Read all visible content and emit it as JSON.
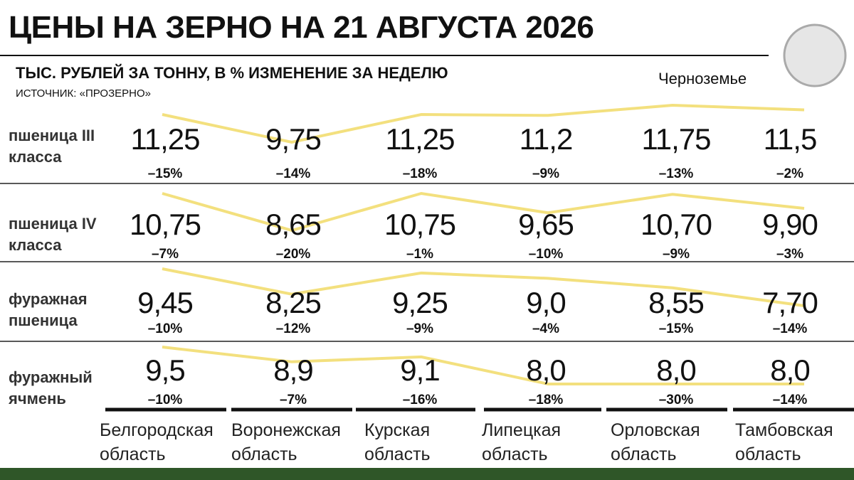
{
  "chart_data": {
    "type": "line",
    "title": "ЦЕНЫ НА ЗЕРНО НА 21 АВГУСТА 2026",
    "subtitle": "ТЫС. РУБЛЕЙ ЗА ТОННУ, В % ИЗМЕНЕНИЕ ЗА НЕДЕЛЮ",
    "source": "ИСТОЧНИК: «ПРОЗЕРНО»",
    "line_label": "Черноземье",
    "color": "#f3e07e",
    "categories": [
      "Белгородская область",
      "Воронежская область",
      "Курская область",
      "Липецкая область",
      "Орловская область",
      "Тамбовская область"
    ],
    "series": [
      {
        "name": "пшеница III класса",
        "values": [
          11.25,
          9.75,
          11.25,
          11.2,
          11.75,
          11.5
        ],
        "value_labels": [
          "11,25",
          "9,75",
          "11,25",
          "11,2",
          "11,75",
          "11,5"
        ],
        "changes": [
          -15,
          -14,
          -18,
          -9,
          -13,
          -2
        ],
        "change_labels": [
          "–15%",
          "–14%",
          "–18%",
          "–9%",
          "–13%",
          "–2%"
        ]
      },
      {
        "name": "пшеница IV класса",
        "values": [
          10.75,
          8.65,
          10.75,
          9.65,
          10.7,
          9.9
        ],
        "value_labels": [
          "10,75",
          "8,65",
          "10,75",
          "9,65",
          "10,70",
          "9,90"
        ],
        "changes": [
          -7,
          -20,
          -1,
          -10,
          -9,
          -3
        ],
        "change_labels": [
          "–7%",
          "–20%",
          "–1%",
          "–10%",
          "–9%",
          "–3%"
        ]
      },
      {
        "name": "фуражная пшеница",
        "values": [
          9.45,
          8.25,
          9.25,
          9.0,
          8.55,
          7.7
        ],
        "value_labels": [
          "9,45",
          "8,25",
          "9,25",
          "9,0",
          "8,55",
          "7,70"
        ],
        "changes": [
          -10,
          -12,
          -9,
          -4,
          -15,
          -14
        ],
        "change_labels": [
          "–10%",
          "–12%",
          "–9%",
          "–4%",
          "–15%",
          "–14%"
        ]
      },
      {
        "name": "фуражный ячмень",
        "values": [
          9.5,
          8.9,
          9.1,
          8.0,
          8.0,
          8.0
        ],
        "value_labels": [
          "9,5",
          "8,9",
          "9,1",
          "8,0",
          "8,0",
          "8,0"
        ],
        "changes": [
          -10,
          -7,
          -16,
          -18,
          -30,
          -14
        ],
        "change_labels": [
          "–10%",
          "–7%",
          "–16%",
          "–18%",
          "–30%",
          "–14%"
        ]
      }
    ]
  }
}
